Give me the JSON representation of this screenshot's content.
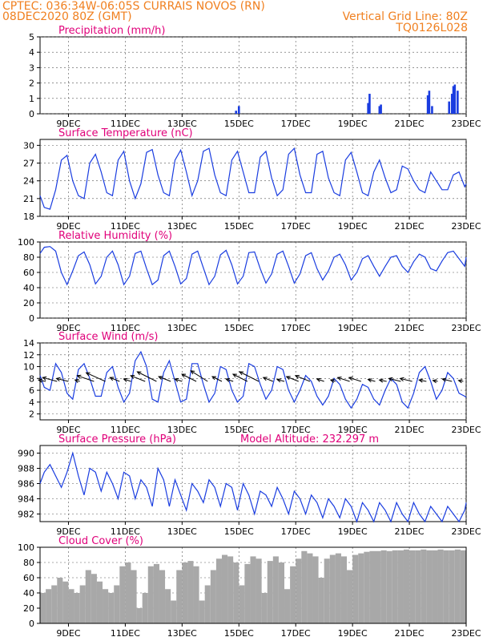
{
  "header": {
    "line1": "CPTEC:   036:34W-06:05S   CURRAIS NOVOS (RN)",
    "line2": "08DEC2020 80Z (GMT)",
    "grid_note": "Vertical Grid Line: 80Z",
    "code": "TQ0126L028"
  },
  "colors": {
    "header": "#f08020",
    "title": "#e0007a",
    "series": "#1a3de0",
    "cloud": "#a8a8a8"
  },
  "x_axis": {
    "ticks": [
      "9DEC",
      "11DEC",
      "13DEC",
      "15DEC",
      "17DEC",
      "19DEC",
      "21DEC",
      "23DEC"
    ],
    "tick_days": [
      9,
      11,
      13,
      15,
      17,
      19,
      21,
      23
    ],
    "range_days": [
      8.0,
      23.0
    ]
  },
  "chart_data": [
    {
      "id": "precip",
      "type": "bar",
      "title": "Precipitation (mm/h)",
      "ylim": [
        0,
        5
      ],
      "yticks": [
        0,
        1,
        2,
        3,
        4,
        5
      ],
      "x": [
        14.9,
        15.0,
        19.55,
        19.6,
        19.95,
        20.0,
        21.65,
        21.7,
        21.8,
        22.4,
        22.5,
        22.55,
        22.6,
        22.7
      ],
      "values": [
        0.2,
        0.5,
        0.7,
        1.3,
        0.5,
        0.6,
        1.2,
        1.5,
        0.5,
        0.8,
        1.3,
        1.8,
        1.9,
        1.5
      ]
    },
    {
      "id": "temp",
      "type": "line",
      "title": "Surface Temperature (nC)",
      "ylim": [
        18,
        31
      ],
      "yticks": [
        18,
        21,
        24,
        27,
        30
      ],
      "x": [
        8.0,
        8.15,
        8.35,
        8.55,
        8.75,
        8.95,
        9.15,
        9.35,
        9.55,
        9.75,
        9.95,
        10.15,
        10.35,
        10.55,
        10.75,
        10.95,
        11.15,
        11.35,
        11.55,
        11.75,
        11.95,
        12.15,
        12.35,
        12.55,
        12.75,
        12.95,
        13.15,
        13.35,
        13.55,
        13.75,
        13.95,
        14.15,
        14.35,
        14.55,
        14.75,
        14.95,
        15.15,
        15.35,
        15.55,
        15.75,
        15.95,
        16.15,
        16.35,
        16.55,
        16.75,
        16.95,
        17.15,
        17.35,
        17.55,
        17.75,
        17.95,
        18.15,
        18.35,
        18.55,
        18.75,
        18.95,
        19.15,
        19.35,
        19.55,
        19.75,
        19.95,
        20.15,
        20.35,
        20.55,
        20.75,
        20.95,
        21.15,
        21.35,
        21.55,
        21.75,
        21.95,
        22.15,
        22.35,
        22.55,
        22.75,
        22.95,
        23.0
      ],
      "values": [
        21.5,
        19.5,
        19.2,
        22.5,
        27.5,
        28.3,
        24.0,
        21.5,
        21.0,
        27.0,
        28.5,
        25.5,
        22.0,
        21.5,
        27.5,
        29.0,
        24.0,
        21.0,
        23.5,
        28.8,
        29.3,
        25.0,
        22.0,
        21.5,
        27.5,
        29.2,
        25.5,
        21.5,
        24.0,
        29.0,
        29.5,
        25.0,
        22.0,
        21.5,
        27.5,
        29.0,
        25.5,
        22.0,
        22.0,
        28.0,
        29.0,
        24.5,
        21.5,
        22.5,
        28.5,
        29.5,
        25.0,
        22.0,
        22.0,
        28.5,
        29.0,
        24.5,
        22.0,
        21.5,
        27.5,
        28.8,
        25.5,
        22.0,
        21.5,
        25.5,
        27.5,
        24.5,
        22.0,
        22.5,
        26.5,
        26.0,
        24.0,
        22.5,
        22.0,
        25.5,
        24.0,
        22.5,
        22.5,
        25.0,
        25.5,
        23.0,
        23.5
      ]
    },
    {
      "id": "rh",
      "type": "line",
      "title": "Relative Humidity (%)",
      "ylim": [
        0,
        100
      ],
      "yticks": [
        0,
        20,
        40,
        60,
        80,
        100
      ],
      "x": [
        8.0,
        8.15,
        8.35,
        8.55,
        8.75,
        8.95,
        9.15,
        9.35,
        9.55,
        9.75,
        9.95,
        10.15,
        10.35,
        10.55,
        10.75,
        10.95,
        11.15,
        11.35,
        11.55,
        11.75,
        11.95,
        12.15,
        12.35,
        12.55,
        12.75,
        12.95,
        13.15,
        13.35,
        13.55,
        13.75,
        13.95,
        14.15,
        14.35,
        14.55,
        14.75,
        14.95,
        15.15,
        15.35,
        15.55,
        15.75,
        15.95,
        16.15,
        16.35,
        16.55,
        16.75,
        16.95,
        17.15,
        17.35,
        17.55,
        17.75,
        17.95,
        18.15,
        18.35,
        18.55,
        18.75,
        18.95,
        19.15,
        19.35,
        19.55,
        19.75,
        19.95,
        20.15,
        20.35,
        20.55,
        20.75,
        20.95,
        21.15,
        21.35,
        21.55,
        21.75,
        21.95,
        22.15,
        22.35,
        22.55,
        22.75,
        22.95,
        23.0
      ],
      "values": [
        85,
        93,
        94,
        88,
        60,
        44,
        62,
        82,
        87,
        70,
        45,
        55,
        80,
        88,
        70,
        44,
        55,
        85,
        88,
        65,
        44,
        50,
        82,
        88,
        68,
        45,
        52,
        84,
        88,
        66,
        44,
        55,
        83,
        89,
        70,
        45,
        55,
        86,
        87,
        65,
        46,
        58,
        84,
        88,
        68,
        46,
        58,
        82,
        86,
        65,
        50,
        62,
        80,
        84,
        70,
        50,
        60,
        78,
        82,
        68,
        55,
        68,
        80,
        82,
        68,
        60,
        74,
        84,
        80,
        65,
        62,
        75,
        86,
        88,
        78,
        68,
        80
      ]
    },
    {
      "id": "wind",
      "type": "line",
      "title": "Surface Wind (m/s)",
      "ylim": [
        1,
        14
      ],
      "yticks": [
        2,
        4,
        6,
        8,
        10,
        12,
        14
      ],
      "x": [
        8.0,
        8.15,
        8.35,
        8.55,
        8.75,
        8.95,
        9.15,
        9.35,
        9.55,
        9.75,
        9.95,
        10.15,
        10.35,
        10.55,
        10.75,
        10.95,
        11.15,
        11.35,
        11.55,
        11.75,
        11.95,
        12.15,
        12.35,
        12.55,
        12.75,
        12.95,
        13.15,
        13.35,
        13.55,
        13.75,
        13.95,
        14.15,
        14.35,
        14.55,
        14.75,
        14.95,
        15.15,
        15.35,
        15.55,
        15.75,
        15.95,
        16.15,
        16.35,
        16.55,
        16.75,
        16.95,
        17.15,
        17.35,
        17.55,
        17.75,
        17.95,
        18.15,
        18.35,
        18.55,
        18.75,
        18.95,
        19.15,
        19.35,
        19.55,
        19.75,
        19.95,
        20.15,
        20.35,
        20.55,
        20.75,
        20.95,
        21.15,
        21.35,
        21.55,
        21.75,
        21.95,
        22.15,
        22.35,
        22.55,
        22.75,
        22.95,
        23.0
      ],
      "values": [
        8.5,
        6.5,
        6.0,
        10.5,
        9.0,
        5.5,
        4.5,
        9.5,
        10.5,
        8.0,
        5.0,
        5.0,
        9.0,
        10.0,
        6.5,
        4.0,
        5.5,
        11.0,
        12.5,
        10.0,
        4.5,
        4.0,
        9.0,
        11.0,
        7.5,
        4.0,
        4.5,
        10.5,
        10.5,
        7.0,
        4.0,
        5.5,
        10.0,
        9.5,
        6.0,
        4.0,
        5.0,
        10.5,
        10.0,
        7.0,
        4.5,
        6.0,
        10.0,
        9.5,
        6.0,
        4.0,
        6.0,
        8.5,
        7.5,
        5.0,
        3.5,
        5.0,
        8.0,
        7.0,
        4.5,
        3.0,
        4.5,
        7.0,
        6.5,
        4.5,
        3.5,
        6.0,
        8.0,
        7.0,
        4.0,
        3.0,
        5.5,
        9.0,
        10.0,
        7.5,
        4.5,
        6.0,
        9.0,
        8.0,
        5.5,
        5.0,
        4.8
      ],
      "vectors": {
        "x": [
          8.2,
          8.6,
          9.0,
          9.4,
          9.9,
          10.3,
          10.8,
          11.2,
          11.7,
          12.1,
          12.6,
          13.0,
          13.5,
          13.9,
          14.4,
          14.8,
          15.3,
          15.7,
          16.2,
          16.6,
          17.1,
          17.5,
          18.0,
          18.4,
          18.9,
          19.3,
          19.8,
          20.2,
          20.7,
          21.1,
          21.6,
          22.0,
          22.5,
          22.9
        ],
        "u": [
          -1.5,
          -3.0,
          -2.5,
          -1.0,
          -3.5,
          -4.0,
          -2.0,
          -1.5,
          -3.0,
          -4.0,
          -2.5,
          -1.5,
          -3.0,
          -3.5,
          -2.0,
          -1.5,
          -3.0,
          -4.0,
          -2.0,
          -1.5,
          -2.5,
          -3.0,
          -1.5,
          -1.0,
          -2.5,
          -2.5,
          -1.5,
          -1.5,
          -2.5,
          -2.5,
          -1.5,
          -1.0,
          -2.0,
          -1.0
        ],
        "v": [
          0.3,
          0.8,
          0.6,
          0.3,
          1.2,
          1.8,
          0.8,
          0.5,
          1.2,
          2.0,
          1.0,
          0.5,
          1.5,
          2.2,
          1.0,
          0.5,
          1.5,
          2.0,
          0.8,
          0.4,
          1.0,
          1.2,
          0.5,
          0.3,
          0.8,
          0.8,
          0.4,
          0.3,
          0.6,
          0.6,
          0.3,
          0.2,
          0.5,
          0.2
        ]
      }
    },
    {
      "id": "pressure",
      "type": "line",
      "title": "Surface Pressure (hPa)",
      "annotation": "Model Altitude: 232.297  m",
      "ylim": [
        981,
        991
      ],
      "yticks": [
        982,
        984,
        986,
        988,
        990
      ],
      "x": [
        8.0,
        8.15,
        8.35,
        8.55,
        8.75,
        8.95,
        9.15,
        9.35,
        9.55,
        9.75,
        9.95,
        10.15,
        10.35,
        10.55,
        10.75,
        10.95,
        11.15,
        11.35,
        11.55,
        11.75,
        11.95,
        12.15,
        12.35,
        12.55,
        12.75,
        12.95,
        13.15,
        13.35,
        13.55,
        13.75,
        13.95,
        14.15,
        14.35,
        14.55,
        14.75,
        14.95,
        15.15,
        15.35,
        15.55,
        15.75,
        15.95,
        16.15,
        16.35,
        16.55,
        16.75,
        16.95,
        17.15,
        17.35,
        17.55,
        17.75,
        17.95,
        18.15,
        18.35,
        18.55,
        18.75,
        18.95,
        19.15,
        19.35,
        19.55,
        19.75,
        19.95,
        20.15,
        20.35,
        20.55,
        20.75,
        20.95,
        21.15,
        21.35,
        21.55,
        21.75,
        21.95,
        22.15,
        22.35,
        22.55,
        22.75,
        22.95,
        23.0
      ],
      "values": [
        986.0,
        987.5,
        988.5,
        987.0,
        985.5,
        987.5,
        990.0,
        987.0,
        984.5,
        988.0,
        987.5,
        985.0,
        987.5,
        986.0,
        984.0,
        987.5,
        987.0,
        984.0,
        986.5,
        985.5,
        983.0,
        988.0,
        986.5,
        983.0,
        986.5,
        984.5,
        982.5,
        986.0,
        985.0,
        983.5,
        986.5,
        985.5,
        983.0,
        986.0,
        985.5,
        982.5,
        986.0,
        984.5,
        982.0,
        985.0,
        984.5,
        983.0,
        985.5,
        984.0,
        982.0,
        985.0,
        984.0,
        982.0,
        984.5,
        983.5,
        981.5,
        984.0,
        983.0,
        981.5,
        984.0,
        983.0,
        981.0,
        983.5,
        982.5,
        981.0,
        983.5,
        982.5,
        981.0,
        983.5,
        982.0,
        981.0,
        983.5,
        982.0,
        981.0,
        983.0,
        982.0,
        981.0,
        983.0,
        982.0,
        981.0,
        982.5,
        983.5
      ]
    },
    {
      "id": "cloud",
      "type": "area",
      "title": "Cloud Cover (%)",
      "ylim": [
        0,
        100
      ],
      "yticks": [
        0,
        20,
        40,
        60,
        80,
        100
      ],
      "x": [
        8.0,
        8.2,
        8.4,
        8.6,
        8.8,
        9.0,
        9.2,
        9.4,
        9.6,
        9.8,
        10.0,
        10.2,
        10.4,
        10.6,
        10.8,
        11.0,
        11.2,
        11.4,
        11.6,
        11.8,
        12.0,
        12.2,
        12.4,
        12.6,
        12.8,
        13.0,
        13.2,
        13.4,
        13.6,
        13.8,
        14.0,
        14.2,
        14.4,
        14.6,
        14.8,
        15.0,
        15.2,
        15.4,
        15.6,
        15.8,
        16.0,
        16.2,
        16.4,
        16.6,
        16.8,
        17.0,
        17.2,
        17.4,
        17.6,
        17.8,
        18.0,
        18.2,
        18.4,
        18.6,
        18.8,
        19.0,
        19.2,
        19.4,
        19.6,
        19.8,
        20.0,
        20.2,
        20.4,
        20.6,
        20.8,
        21.0,
        21.2,
        21.4,
        21.6,
        21.8,
        22.0,
        22.2,
        22.4,
        22.6,
        22.8,
        23.0
      ],
      "values": [
        40,
        45,
        50,
        60,
        55,
        45,
        40,
        50,
        70,
        65,
        55,
        45,
        40,
        50,
        75,
        80,
        70,
        20,
        40,
        75,
        78,
        70,
        45,
        30,
        70,
        80,
        82,
        75,
        30,
        50,
        70,
        85,
        90,
        88,
        80,
        50,
        78,
        88,
        85,
        40,
        82,
        88,
        80,
        45,
        75,
        85,
        95,
        92,
        88,
        60,
        85,
        90,
        92,
        88,
        70,
        90,
        92,
        94,
        95,
        95,
        96,
        95,
        96,
        96,
        97,
        96,
        96,
        97,
        96,
        96,
        97,
        96,
        96,
        97,
        96,
        96
      ]
    }
  ]
}
